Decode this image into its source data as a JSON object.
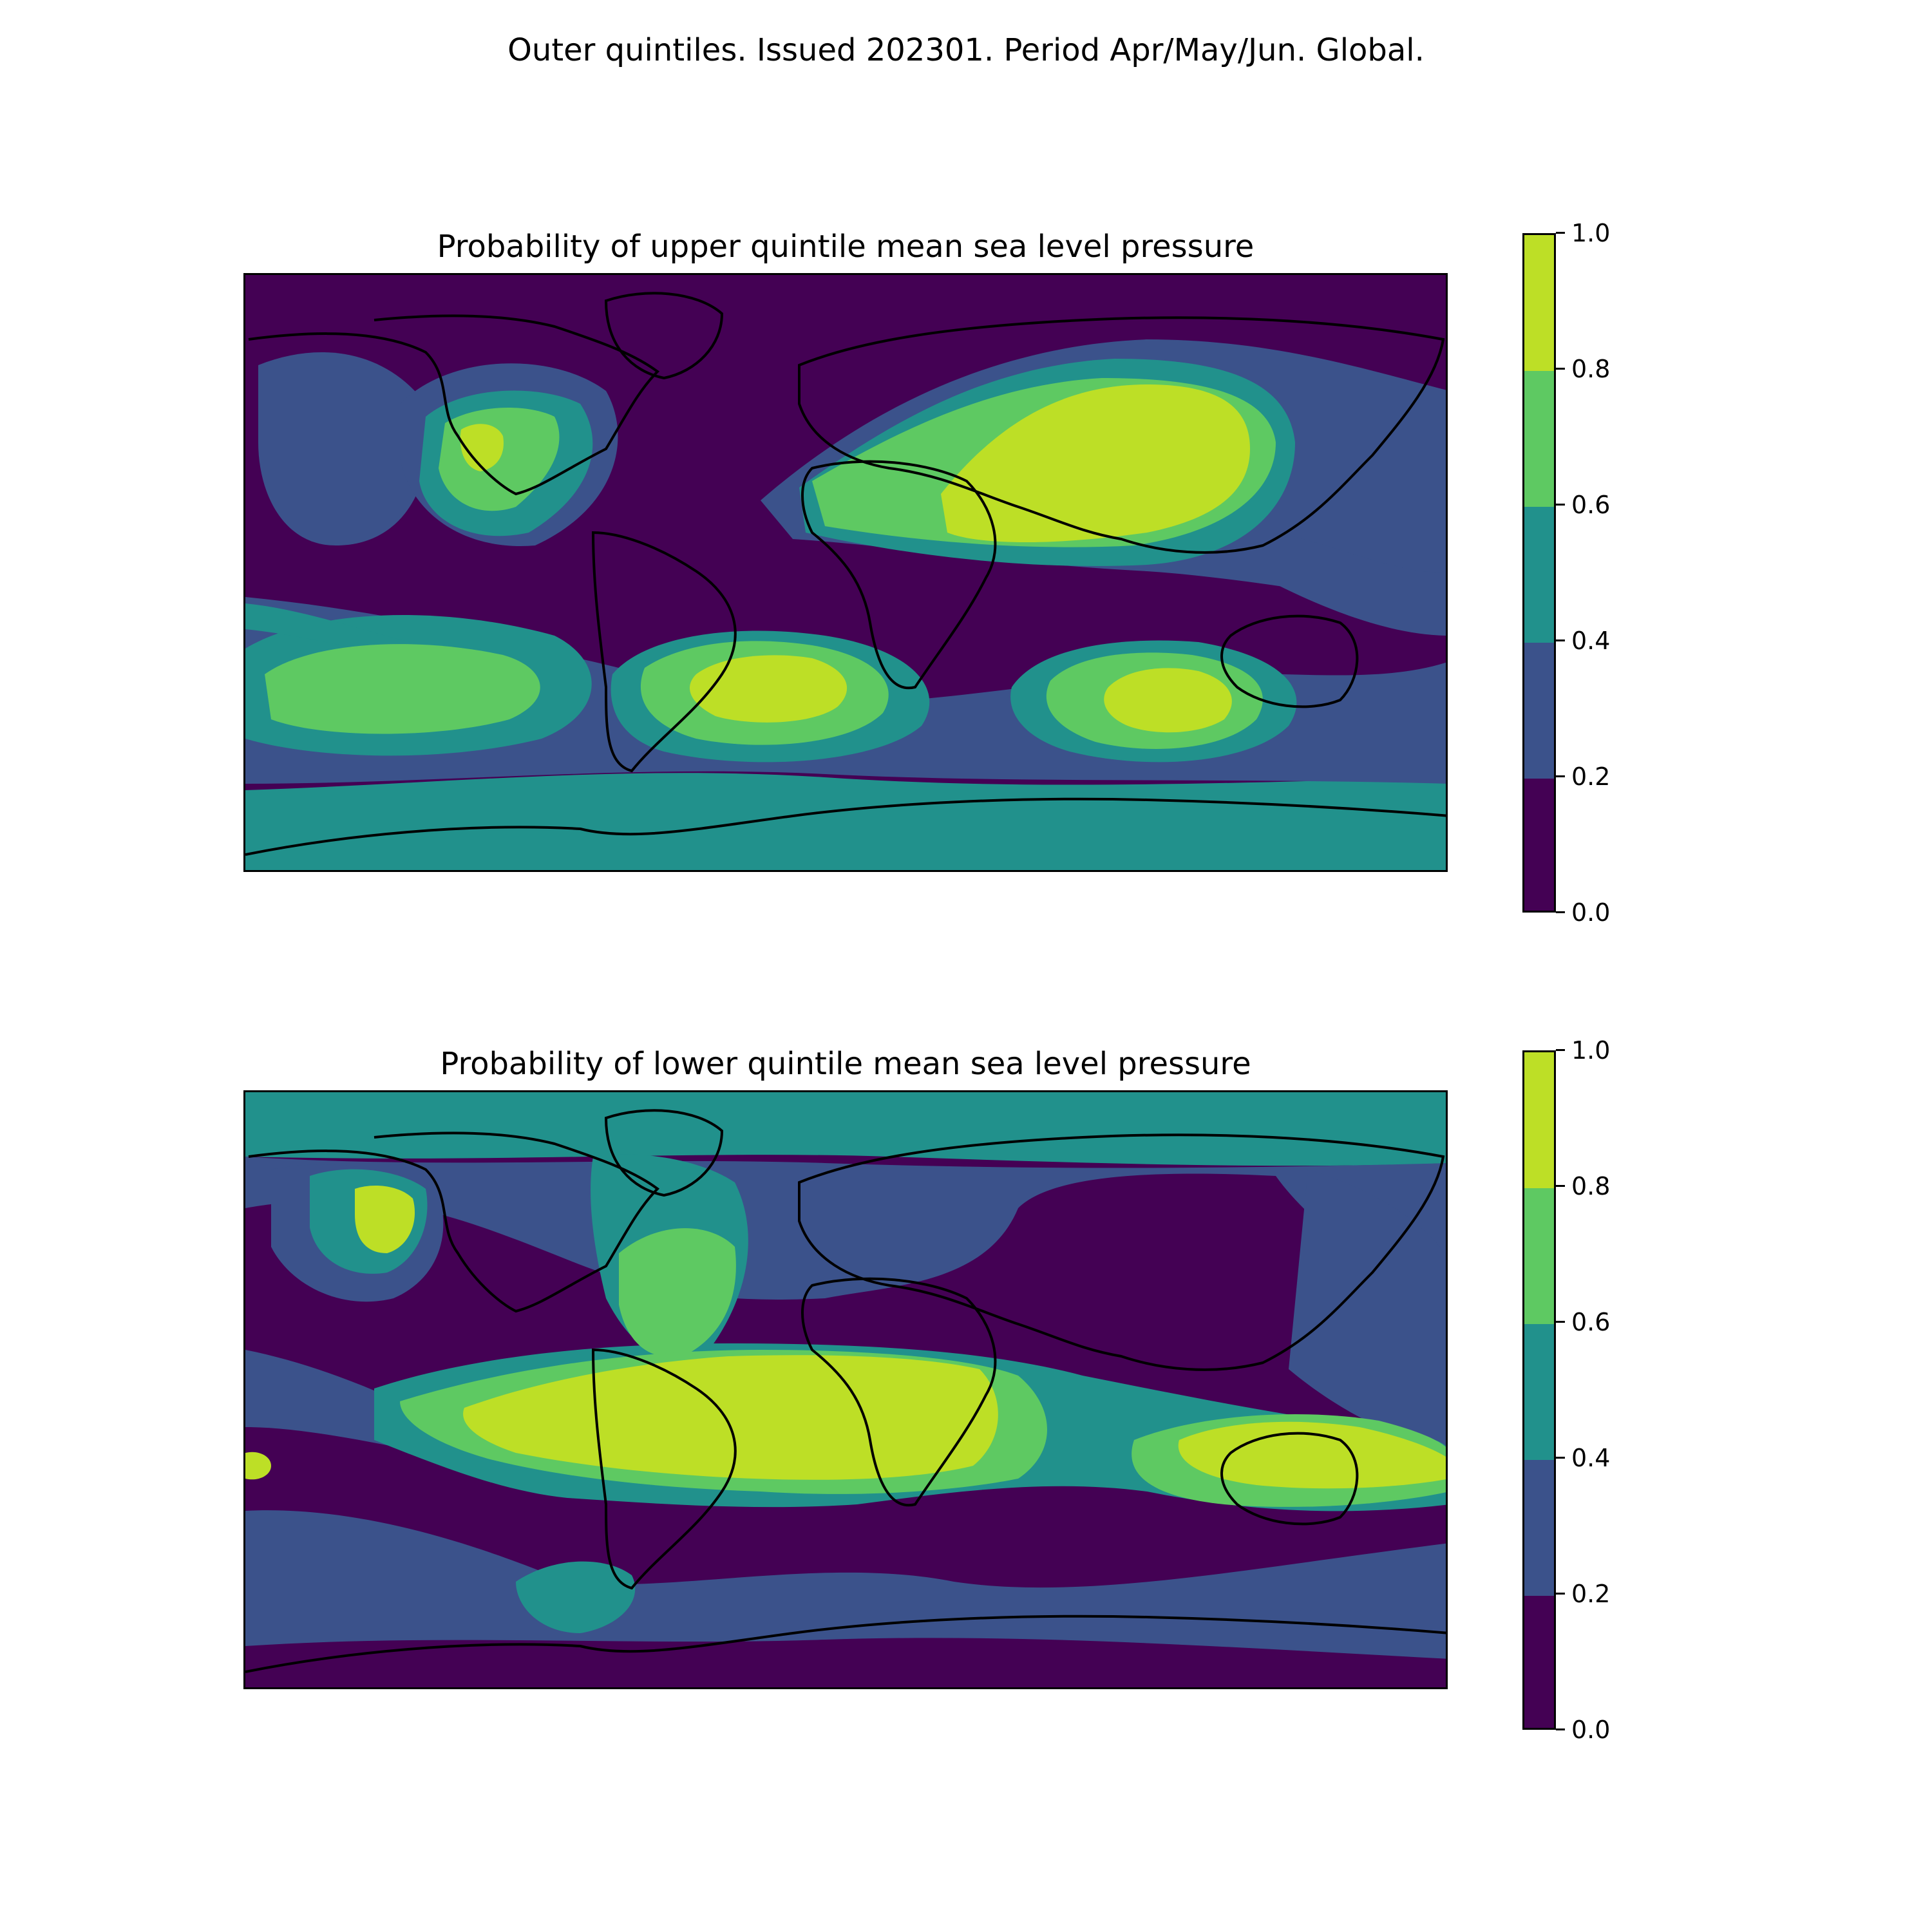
{
  "figure": {
    "suptitle": "Outer quintiles. Issued 202301. Period Apr/May/Jun. Global."
  },
  "colorscale": {
    "levels": [
      "0.0",
      "0.2",
      "0.4",
      "0.6",
      "0.8",
      "1.0"
    ],
    "colors": [
      "#440154",
      "#3b528b",
      "#21918c",
      "#5ec962",
      "#bddf26"
    ]
  },
  "maps": [
    {
      "title": "Probability of upper quintile mean sea level pressure",
      "background_color": "#440154"
    },
    {
      "title": "Probability of lower quintile mean sea level pressure",
      "background_color": "#440154"
    }
  ]
}
